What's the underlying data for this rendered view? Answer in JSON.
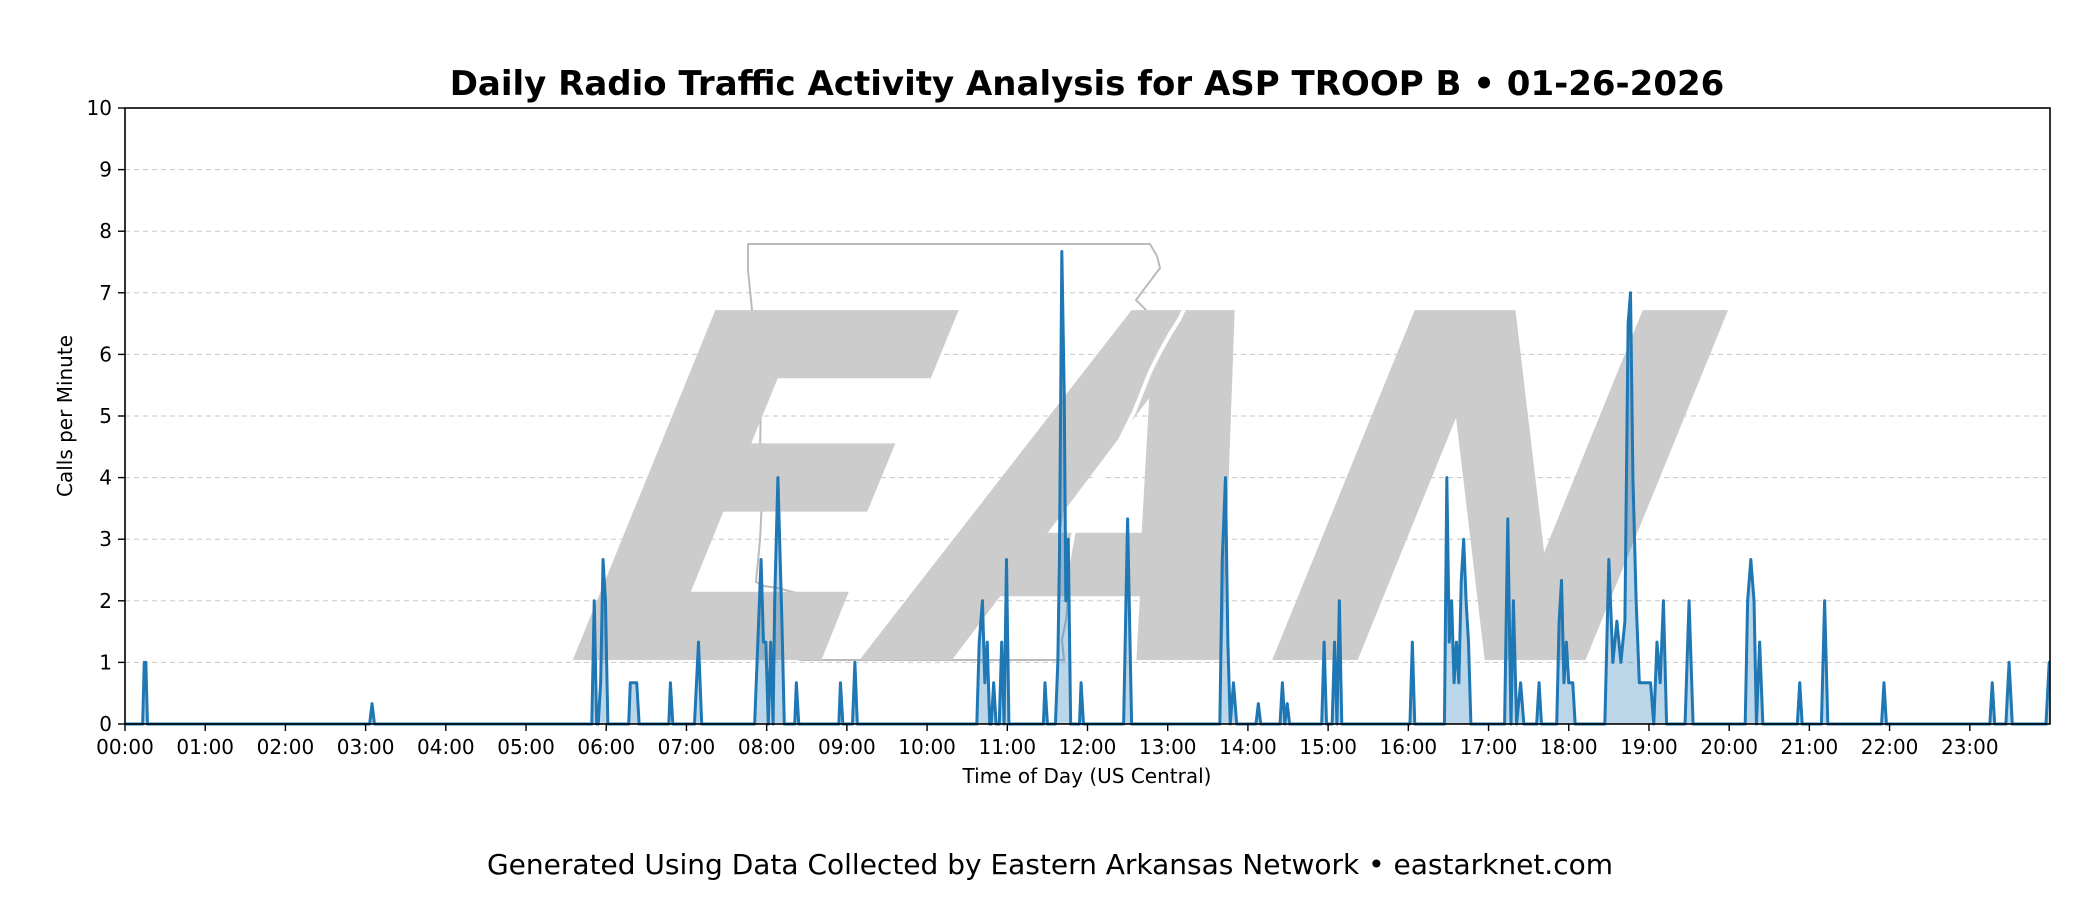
{
  "chart_data": {
    "type": "area",
    "title": "Daily Radio Traffic Activity Analysis for ASP TROOP B • 01-26-2026",
    "xlabel": "Time of Day (US Central)",
    "ylabel": "Calls per Minute",
    "xlim": [
      0,
      24
    ],
    "ylim": [
      0,
      10
    ],
    "x_ticks": [
      0,
      1,
      2,
      3,
      4,
      5,
      6,
      7,
      8,
      9,
      10,
      11,
      12,
      13,
      14,
      15,
      16,
      17,
      18,
      19,
      20,
      21,
      22,
      23
    ],
    "x_tick_labels": [
      "00:00",
      "01:00",
      "02:00",
      "03:00",
      "04:00",
      "05:00",
      "06:00",
      "07:00",
      "08:00",
      "09:00",
      "10:00",
      "11:00",
      "12:00",
      "13:00",
      "14:00",
      "15:00",
      "16:00",
      "17:00",
      "18:00",
      "19:00",
      "20:00",
      "21:00",
      "22:00",
      "23:00"
    ],
    "y_ticks": [
      0,
      1,
      2,
      3,
      4,
      5,
      6,
      7,
      8,
      9,
      10
    ],
    "y_tick_labels": [
      "0",
      "1",
      "2",
      "3",
      "4",
      "5",
      "6",
      "7",
      "8",
      "9",
      "10"
    ],
    "grid": "horizontal dashed",
    "line_color": "#1f77b4",
    "fill_color": "#1f77b4",
    "watermark": "EAN",
    "x_unit": "hours after 00:00",
    "points": [
      [
        0.0,
        0
      ],
      [
        0.22,
        0
      ],
      [
        0.24,
        1
      ],
      [
        0.26,
        1
      ],
      [
        0.28,
        0
      ],
      [
        3.05,
        0
      ],
      [
        3.08,
        0.33
      ],
      [
        3.11,
        0
      ],
      [
        5.82,
        0
      ],
      [
        5.85,
        2
      ],
      [
        5.88,
        0
      ],
      [
        5.9,
        0
      ],
      [
        5.93,
        0.67
      ],
      [
        5.96,
        2.67
      ],
      [
        5.99,
        2
      ],
      [
        6.02,
        0
      ],
      [
        6.28,
        0
      ],
      [
        6.3,
        0.67
      ],
      [
        6.34,
        0.67
      ],
      [
        6.38,
        0.67
      ],
      [
        6.41,
        0
      ],
      [
        6.78,
        0
      ],
      [
        6.8,
        0.67
      ],
      [
        6.83,
        0
      ],
      [
        7.1,
        0
      ],
      [
        7.15,
        1.33
      ],
      [
        7.19,
        0
      ],
      [
        7.85,
        0
      ],
      [
        7.93,
        2.67
      ],
      [
        7.96,
        1.33
      ],
      [
        7.99,
        1.33
      ],
      [
        8.02,
        0
      ],
      [
        8.05,
        1.33
      ],
      [
        8.08,
        0
      ],
      [
        8.1,
        2
      ],
      [
        8.14,
        4
      ],
      [
        8.19,
        1.67
      ],
      [
        8.22,
        0
      ],
      [
        8.35,
        0
      ],
      [
        8.37,
        0.67
      ],
      [
        8.4,
        0
      ],
      [
        8.9,
        0
      ],
      [
        8.92,
        0.67
      ],
      [
        8.95,
        0
      ],
      [
        9.07,
        0
      ],
      [
        9.1,
        1
      ],
      [
        9.13,
        0
      ],
      [
        10.62,
        0
      ],
      [
        10.65,
        1.33
      ],
      [
        10.69,
        2
      ],
      [
        10.72,
        0.67
      ],
      [
        10.75,
        1.33
      ],
      [
        10.78,
        0
      ],
      [
        10.8,
        0
      ],
      [
        10.83,
        0.67
      ],
      [
        10.86,
        0
      ],
      [
        10.9,
        0
      ],
      [
        10.93,
        1.33
      ],
      [
        10.96,
        0
      ],
      [
        10.99,
        2.67
      ],
      [
        11.02,
        0
      ],
      [
        11.45,
        0
      ],
      [
        11.47,
        0.67
      ],
      [
        11.5,
        0
      ],
      [
        11.6,
        0
      ],
      [
        11.63,
        1
      ],
      [
        11.65,
        2.67
      ],
      [
        11.68,
        7.67
      ],
      [
        11.71,
        5.33
      ],
      [
        11.73,
        2
      ],
      [
        11.76,
        3
      ],
      [
        11.79,
        0
      ],
      [
        11.9,
        0
      ],
      [
        11.92,
        0.67
      ],
      [
        11.95,
        0
      ],
      [
        12.45,
        0
      ],
      [
        12.5,
        3.33
      ],
      [
        12.55,
        0
      ],
      [
        13.65,
        0
      ],
      [
        13.68,
        2.67
      ],
      [
        13.72,
        4
      ],
      [
        13.75,
        1.33
      ],
      [
        13.78,
        0
      ],
      [
        13.82,
        0.67
      ],
      [
        13.86,
        0
      ],
      [
        14.1,
        0
      ],
      [
        14.13,
        0.33
      ],
      [
        14.16,
        0
      ],
      [
        14.4,
        0
      ],
      [
        14.43,
        0.67
      ],
      [
        14.46,
        0
      ],
      [
        14.49,
        0.33
      ],
      [
        14.52,
        0
      ],
      [
        14.92,
        0
      ],
      [
        14.95,
        1.33
      ],
      [
        14.98,
        0
      ],
      [
        15.05,
        0
      ],
      [
        15.08,
        1.33
      ],
      [
        15.11,
        0
      ],
      [
        15.14,
        2
      ],
      [
        15.17,
        0
      ],
      [
        16.02,
        0
      ],
      [
        16.05,
        1.33
      ],
      [
        16.08,
        0
      ],
      [
        16.45,
        0
      ],
      [
        16.48,
        4
      ],
      [
        16.51,
        1.33
      ],
      [
        16.54,
        2
      ],
      [
        16.57,
        0.67
      ],
      [
        16.6,
        1.33
      ],
      [
        16.63,
        0.67
      ],
      [
        16.66,
        2.33
      ],
      [
        16.69,
        3
      ],
      [
        16.72,
        2
      ],
      [
        16.75,
        1.33
      ],
      [
        16.78,
        0
      ],
      [
        17.2,
        0
      ],
      [
        17.24,
        3.33
      ],
      [
        17.28,
        0
      ],
      [
        17.31,
        2
      ],
      [
        17.35,
        0
      ],
      [
        17.4,
        0.67
      ],
      [
        17.44,
        0
      ],
      [
        17.6,
        0
      ],
      [
        17.63,
        0.67
      ],
      [
        17.66,
        0
      ],
      [
        17.85,
        0
      ],
      [
        17.88,
        1.67
      ],
      [
        17.91,
        2.33
      ],
      [
        17.94,
        0.67
      ],
      [
        17.97,
        1.33
      ],
      [
        18.0,
        0.67
      ],
      [
        18.05,
        0.67
      ],
      [
        18.08,
        0
      ],
      [
        18.45,
        0
      ],
      [
        18.5,
        2.67
      ],
      [
        18.55,
        1
      ],
      [
        18.6,
        1.67
      ],
      [
        18.65,
        1
      ],
      [
        18.7,
        1.67
      ],
      [
        18.74,
        6.5
      ],
      [
        18.77,
        7
      ],
      [
        18.8,
        4
      ],
      [
        18.84,
        2
      ],
      [
        18.88,
        0.67
      ],
      [
        18.95,
        0.67
      ],
      [
        19.02,
        0.67
      ],
      [
        19.06,
        0
      ],
      [
        19.1,
        1.33
      ],
      [
        19.14,
        0.67
      ],
      [
        19.18,
        2
      ],
      [
        19.22,
        0
      ],
      [
        19.45,
        0
      ],
      [
        19.5,
        2
      ],
      [
        19.55,
        0
      ],
      [
        20.2,
        0
      ],
      [
        20.23,
        2
      ],
      [
        20.27,
        2.67
      ],
      [
        20.31,
        2
      ],
      [
        20.34,
        0
      ],
      [
        20.38,
        1.33
      ],
      [
        20.42,
        0
      ],
      [
        20.85,
        0
      ],
      [
        20.88,
        0.67
      ],
      [
        20.91,
        0
      ],
      [
        21.15,
        0
      ],
      [
        21.19,
        2
      ],
      [
        21.23,
        0
      ],
      [
        21.9,
        0
      ],
      [
        21.93,
        0.67
      ],
      [
        21.96,
        0
      ],
      [
        23.25,
        0
      ],
      [
        23.28,
        0.67
      ],
      [
        23.31,
        0
      ],
      [
        23.45,
        0
      ],
      [
        23.49,
        1
      ],
      [
        23.53,
        0
      ],
      [
        23.95,
        0
      ],
      [
        23.99,
        1
      ],
      [
        24.0,
        1
      ]
    ]
  },
  "footer": {
    "text": "Generated Using Data Collected by Eastern Arkansas Network • eastarknet.com"
  }
}
